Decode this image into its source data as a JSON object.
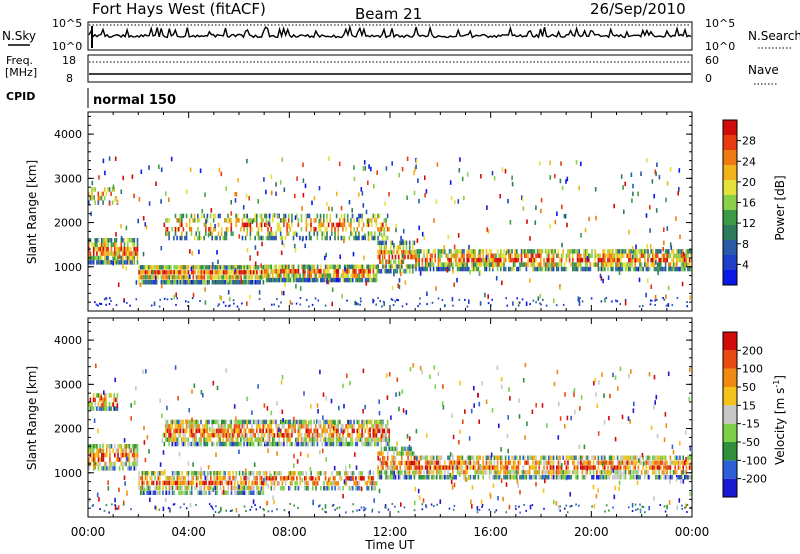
{
  "header": {
    "station": "Fort Hays West (fitACF)",
    "beam": "Beam 21",
    "date": "26/Sep/2010"
  },
  "status_panels": {
    "nsky_label": "N.Sky",
    "nsky_ticks": [
      "10^5",
      "10^0"
    ],
    "nsearch_label": "N.Search",
    "nsearch_ticks": [
      "10^5",
      "10^0"
    ],
    "freq_label": "Freq.",
    "freq_unit": "[MHz]",
    "freq_ticks": [
      "18",
      "8"
    ],
    "nave_label": "Nave",
    "nave_ticks": [
      "60",
      "0"
    ],
    "cpid_label": "CPID",
    "cpid_value": "normal 150"
  },
  "chart_data": [
    {
      "type": "heatmap",
      "title": "",
      "ylabel": "Slant Range [km]",
      "ylim": [
        0,
        4500
      ],
      "yticks": [
        "4000",
        "3000",
        "2000",
        "1000"
      ],
      "xlim_hours": [
        0,
        24
      ],
      "xticks": [
        "00:00",
        "04:00",
        "08:00",
        "12:00",
        "16:00",
        "20:00",
        "00:00"
      ],
      "colorbar": {
        "label": "Power [dB]",
        "ticks": [
          "28",
          "24",
          "20",
          "16",
          "12",
          "8",
          "4"
        ],
        "colors": [
          "#0a18e6",
          "#1f3fc8",
          "#2b5aa8",
          "#2f7a5c",
          "#3c9a46",
          "#8bd04a",
          "#e6e03a",
          "#f2b21a",
          "#f07a12",
          "#e83a10",
          "#d10a0a"
        ]
      },
      "bands": [
        {
          "t": [
            0.0,
            2.0
          ],
          "range": [
            1150,
            1750
          ],
          "level": 0.55
        },
        {
          "t": [
            2.0,
            7.0
          ],
          "range": [
            700,
            1150
          ],
          "level": 0.7
        },
        {
          "t": [
            7.0,
            11.5
          ],
          "range": [
            750,
            1150
          ],
          "level": 0.6
        },
        {
          "t": [
            11.5,
            13.0
          ],
          "range": [
            950,
            1700
          ],
          "level": 0.45
        },
        {
          "t": [
            13.0,
            24.0
          ],
          "range": [
            1000,
            1500
          ],
          "level": 0.5
        },
        {
          "t": [
            3.0,
            12.0
          ],
          "range": [
            1700,
            2300
          ],
          "level": 0.15
        },
        {
          "t": [
            0.0,
            1.2
          ],
          "range": [
            2500,
            2900
          ],
          "level": 0.2
        }
      ]
    },
    {
      "type": "heatmap",
      "title": "",
      "ylabel": "Slant Range [km]",
      "ylim": [
        0,
        4500
      ],
      "yticks": [
        "4000",
        "3000",
        "2000",
        "1000"
      ],
      "xlim_hours": [
        0,
        24
      ],
      "xticks": [
        "00:00",
        "04:00",
        "08:00",
        "12:00",
        "16:00",
        "20:00",
        "00:00"
      ],
      "xlabel": "Time UT",
      "colorbar": {
        "label": "Velocity [m s^-1]",
        "ticks": [
          "200",
          "100",
          "50",
          "15",
          "-15",
          "-50",
          "-100",
          "-200"
        ],
        "colors": [
          "#1a1ad0",
          "#2f5fd6",
          "#2f8f3a",
          "#7ed04a",
          "#c8c8c8",
          "#f4c21a",
          "#f08a12",
          "#e84a10",
          "#d10a0a"
        ]
      },
      "bands": [
        {
          "t": [
            0.0,
            2.0
          ],
          "range": [
            1150,
            1750
          ],
          "level": 0.4
        },
        {
          "t": [
            2.0,
            7.0
          ],
          "range": [
            600,
            1150
          ],
          "level": 0.45
        },
        {
          "t": [
            7.0,
            11.5
          ],
          "range": [
            700,
            1150
          ],
          "level": 0.35
        },
        {
          "t": [
            11.5,
            13.0
          ],
          "range": [
            950,
            1700
          ],
          "level": 0.5
        },
        {
          "t": [
            13.0,
            24.0
          ],
          "range": [
            950,
            1500
          ],
          "level": 0.5
        },
        {
          "t": [
            3.0,
            12.0
          ],
          "range": [
            1700,
            2300
          ],
          "level": 0.5
        },
        {
          "t": [
            0.0,
            1.2
          ],
          "range": [
            2500,
            2900
          ],
          "level": 0.4
        }
      ]
    }
  ]
}
